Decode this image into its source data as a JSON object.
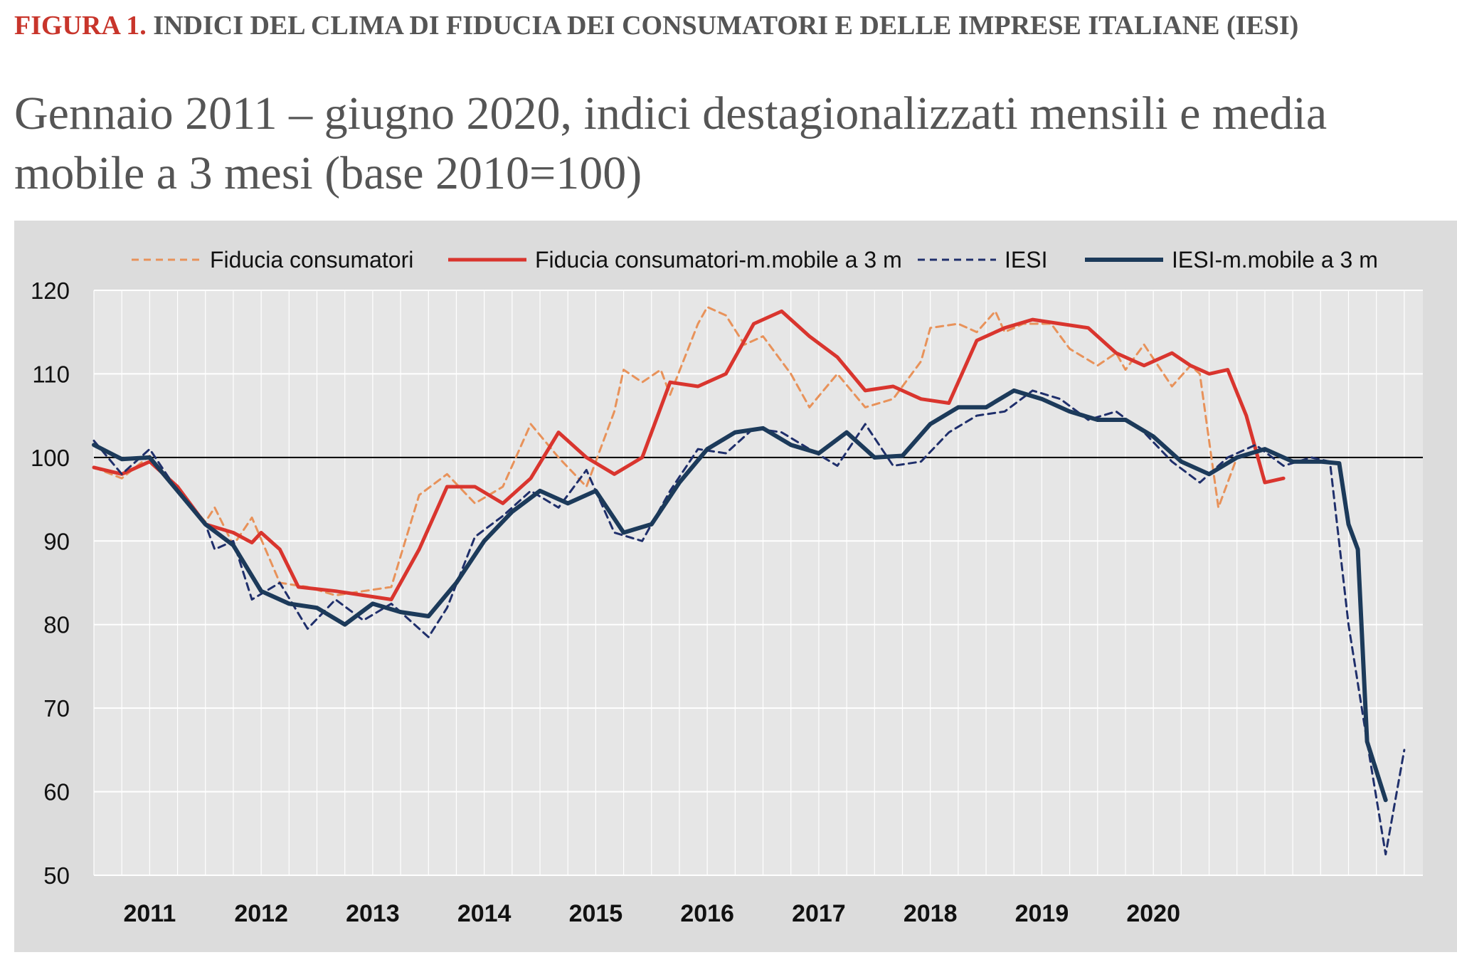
{
  "header": {
    "figure_number": "FIGURA 1.",
    "figure_title": "INDICI DEL CLIMA DI FIDUCIA DEI CONSUMATORI E DELLE IMPRESE ITALIANE (IESI)",
    "subtitle": "Gennaio 2011 – giugno 2020, indici destagionalizzati mensili e media mobile a 3 mesi (base 2010=100)"
  },
  "colors": {
    "consumer_monthly": "#e8925a",
    "consumer_ma": "#d9352e",
    "iesi_monthly": "#1f2f6b",
    "iesi_ma": "#1c3a5a",
    "panel_bg": "#dcdcdc",
    "plot_bg": "#e6e6e6",
    "grid": "#ffffff",
    "reference_line": "#000000"
  },
  "chart_data": {
    "type": "line",
    "title": "",
    "xlabel": "",
    "ylabel": "",
    "ylim": [
      50,
      120
    ],
    "y_ticks": [
      "120",
      "110",
      "100",
      "90",
      "80",
      "70",
      "60",
      "50"
    ],
    "x_start": "2010-07",
    "x_end": "2020-06",
    "x_tick_labels": [
      "2011",
      "2012",
      "2013",
      "2014",
      "2015",
      "2016",
      "2017",
      "2018",
      "2019",
      "2020"
    ],
    "reference_line": 100,
    "grid": true,
    "legend_position": "top",
    "series": [
      {
        "name": "Fiducia consumatori",
        "style": "dashed",
        "points": [
          [
            "2010-07",
            98.8
          ],
          [
            "2010-10",
            97.5
          ],
          [
            "2011-01",
            100.2
          ],
          [
            "2011-04",
            96.0
          ],
          [
            "2011-07",
            92.3
          ],
          [
            "2011-08",
            94.0
          ],
          [
            "2011-10",
            89.5
          ],
          [
            "2011-12",
            92.8
          ],
          [
            "2012-03",
            85.0
          ],
          [
            "2012-06",
            84.5
          ],
          [
            "2012-09",
            83.5
          ],
          [
            "2012-12",
            84.0
          ],
          [
            "2013-03",
            84.5
          ],
          [
            "2013-06",
            95.5
          ],
          [
            "2013-09",
            98.0
          ],
          [
            "2013-12",
            94.5
          ],
          [
            "2014-03",
            96.5
          ],
          [
            "2014-06",
            104.0
          ],
          [
            "2014-09",
            100.0
          ],
          [
            "2014-12",
            96.5
          ],
          [
            "2015-03",
            105.5
          ],
          [
            "2015-04",
            110.5
          ],
          [
            "2015-06",
            109.0
          ],
          [
            "2015-08",
            110.5
          ],
          [
            "2015-09",
            107.5
          ],
          [
            "2015-12",
            116.0
          ],
          [
            "2016-01",
            118.0
          ],
          [
            "2016-03",
            117.0
          ],
          [
            "2016-05",
            113.5
          ],
          [
            "2016-07",
            114.5
          ],
          [
            "2016-10",
            110.0
          ],
          [
            "2016-12",
            106.0
          ],
          [
            "2017-03",
            110.0
          ],
          [
            "2017-06",
            106.0
          ],
          [
            "2017-09",
            107.0
          ],
          [
            "2017-12",
            111.5
          ],
          [
            "2018-01",
            115.5
          ],
          [
            "2018-04",
            116.0
          ],
          [
            "2018-06",
            115.0
          ],
          [
            "2018-08",
            117.5
          ],
          [
            "2018-09",
            115.0
          ],
          [
            "2018-11",
            116.0
          ],
          [
            "2019-02",
            116.0
          ],
          [
            "2019-04",
            113.0
          ],
          [
            "2019-07",
            111.0
          ],
          [
            "2019-09",
            112.5
          ],
          [
            "2019-10",
            110.5
          ],
          [
            "2019-12",
            113.5
          ],
          [
            "2020-03",
            108.5
          ],
          [
            "2020-05",
            111.0
          ],
          [
            "2020-06",
            110.0
          ],
          [
            "2020-08",
            94.0
          ],
          [
            "2020-10",
            100.0
          ]
        ]
      },
      {
        "name": "Fiducia consumatori-m.mobile a 3 m",
        "style": "solid",
        "points": [
          [
            "2010-07",
            98.8
          ],
          [
            "2010-10",
            98.0
          ],
          [
            "2011-01",
            99.5
          ],
          [
            "2011-04",
            96.5
          ],
          [
            "2011-07",
            92.0
          ],
          [
            "2011-10",
            91.0
          ],
          [
            "2011-12",
            89.8
          ],
          [
            "2012-01",
            91.0
          ],
          [
            "2012-03",
            89.0
          ],
          [
            "2012-05",
            84.5
          ],
          [
            "2012-09",
            84.0
          ],
          [
            "2012-12",
            83.5
          ],
          [
            "2013-03",
            83.0
          ],
          [
            "2013-06",
            89.0
          ],
          [
            "2013-09",
            96.5
          ],
          [
            "2013-12",
            96.5
          ],
          [
            "2014-03",
            94.5
          ],
          [
            "2014-06",
            97.5
          ],
          [
            "2014-09",
            103.0
          ],
          [
            "2014-12",
            100.0
          ],
          [
            "2015-03",
            98.0
          ],
          [
            "2015-06",
            100.0
          ],
          [
            "2015-09",
            109.0
          ],
          [
            "2015-12",
            108.5
          ],
          [
            "2016-03",
            110.0
          ],
          [
            "2016-06",
            116.0
          ],
          [
            "2016-09",
            117.5
          ],
          [
            "2016-12",
            114.5
          ],
          [
            "2017-03",
            112.0
          ],
          [
            "2017-06",
            108.0
          ],
          [
            "2017-09",
            108.5
          ],
          [
            "2017-12",
            107.0
          ],
          [
            "2018-03",
            106.5
          ],
          [
            "2018-06",
            114.0
          ],
          [
            "2018-09",
            115.5
          ],
          [
            "2018-12",
            116.5
          ],
          [
            "2019-03",
            116.0
          ],
          [
            "2019-06",
            115.5
          ],
          [
            "2019-09",
            112.5
          ],
          [
            "2019-12",
            111.0
          ],
          [
            "2020-03",
            112.5
          ],
          [
            "2020-05",
            111.0
          ],
          [
            "2020-07",
            110.0
          ],
          [
            "2020-09",
            110.5
          ],
          [
            "2020-11",
            105.0
          ],
          [
            "2021-01",
            97.0
          ],
          [
            "2021-03",
            97.5
          ]
        ]
      },
      {
        "name": "IESI",
        "style": "dashed",
        "points": [
          [
            "2010-07",
            102.0
          ],
          [
            "2010-10",
            98.0
          ],
          [
            "2011-01",
            101.0
          ],
          [
            "2011-04",
            96.0
          ],
          [
            "2011-07",
            92.0
          ],
          [
            "2011-08",
            89.0
          ],
          [
            "2011-10",
            90.0
          ],
          [
            "2011-12",
            83.0
          ],
          [
            "2012-03",
            85.0
          ],
          [
            "2012-06",
            79.5
          ],
          [
            "2012-09",
            83.0
          ],
          [
            "2012-12",
            80.5
          ],
          [
            "2013-03",
            82.5
          ],
          [
            "2013-05",
            80.5
          ],
          [
            "2013-07",
            78.5
          ],
          [
            "2013-09",
            82.0
          ],
          [
            "2013-12",
            90.5
          ],
          [
            "2014-03",
            93.0
          ],
          [
            "2014-06",
            96.0
          ],
          [
            "2014-09",
            94.0
          ],
          [
            "2014-12",
            98.5
          ],
          [
            "2015-03",
            91.0
          ],
          [
            "2015-06",
            90.0
          ],
          [
            "2015-09",
            96.0
          ],
          [
            "2015-12",
            101.0
          ],
          [
            "2016-03",
            100.5
          ],
          [
            "2016-06",
            103.5
          ],
          [
            "2016-09",
            103.0
          ],
          [
            "2016-12",
            101.0
          ],
          [
            "2017-03",
            99.0
          ],
          [
            "2017-06",
            104.0
          ],
          [
            "2017-09",
            99.0
          ],
          [
            "2017-12",
            99.5
          ],
          [
            "2018-03",
            103.0
          ],
          [
            "2018-06",
            105.0
          ],
          [
            "2018-09",
            105.5
          ],
          [
            "2018-12",
            108.0
          ],
          [
            "2019-03",
            107.0
          ],
          [
            "2019-06",
            104.5
          ],
          [
            "2019-09",
            105.5
          ],
          [
            "2019-12",
            103.0
          ],
          [
            "2020-03",
            99.5
          ],
          [
            "2020-06",
            97.0
          ],
          [
            "2020-09",
            100.0
          ],
          [
            "2020-12",
            101.5
          ],
          [
            "2021-03",
            99.0
          ],
          [
            "2021-06",
            100.0
          ],
          [
            "2021-08",
            99.5
          ],
          [
            "2021-10",
            80.0
          ],
          [
            "2021-12",
            66.0
          ],
          [
            "2022-02",
            52.5
          ],
          [
            "2022-04",
            65.0
          ]
        ]
      },
      {
        "name": "IESI-m.mobile a 3 m",
        "style": "solid",
        "points": [
          [
            "2010-07",
            101.5
          ],
          [
            "2010-10",
            99.8
          ],
          [
            "2011-01",
            100.0
          ],
          [
            "2011-04",
            96.0
          ],
          [
            "2011-07",
            92.0
          ],
          [
            "2011-10",
            89.5
          ],
          [
            "2012-01",
            84.0
          ],
          [
            "2012-04",
            82.5
          ],
          [
            "2012-07",
            82.0
          ],
          [
            "2012-10",
            80.0
          ],
          [
            "2013-01",
            82.5
          ],
          [
            "2013-04",
            81.5
          ],
          [
            "2013-07",
            81.0
          ],
          [
            "2013-10",
            85.0
          ],
          [
            "2014-01",
            90.0
          ],
          [
            "2014-04",
            93.5
          ],
          [
            "2014-07",
            96.0
          ],
          [
            "2014-10",
            94.5
          ],
          [
            "2015-01",
            96.0
          ],
          [
            "2015-04",
            91.0
          ],
          [
            "2015-07",
            92.0
          ],
          [
            "2015-10",
            97.0
          ],
          [
            "2016-01",
            101.0
          ],
          [
            "2016-04",
            103.0
          ],
          [
            "2016-07",
            103.5
          ],
          [
            "2016-10",
            101.5
          ],
          [
            "2017-01",
            100.5
          ],
          [
            "2017-04",
            103.0
          ],
          [
            "2017-07",
            100.0
          ],
          [
            "2017-10",
            100.2
          ],
          [
            "2018-01",
            104.0
          ],
          [
            "2018-04",
            106.0
          ],
          [
            "2018-07",
            106.0
          ],
          [
            "2018-10",
            108.0
          ],
          [
            "2019-01",
            107.0
          ],
          [
            "2019-04",
            105.5
          ],
          [
            "2019-07",
            104.5
          ],
          [
            "2019-10",
            104.5
          ],
          [
            "2020-01",
            102.5
          ],
          [
            "2020-04",
            99.5
          ],
          [
            "2020-07",
            98.0
          ],
          [
            "2020-10",
            100.0
          ],
          [
            "2021-01",
            101.0
          ],
          [
            "2021-04",
            99.5
          ],
          [
            "2021-07",
            99.5
          ],
          [
            "2021-09",
            99.3
          ],
          [
            "2021-10",
            92.0
          ],
          [
            "2021-11",
            89.0
          ],
          [
            "2021-12",
            66.0
          ],
          [
            "2022-02",
            59.0
          ]
        ]
      }
    ]
  }
}
